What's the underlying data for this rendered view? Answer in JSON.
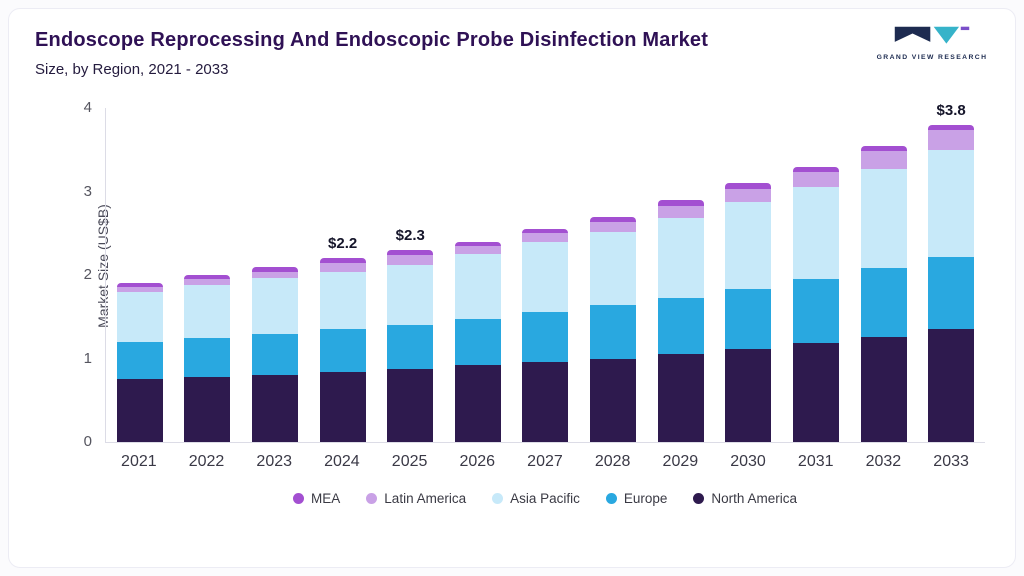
{
  "header": {
    "title": "Endoscope Reprocessing And Endoscopic Probe Disinfection Market",
    "subtitle": "Size, by Region, 2021 - 2033",
    "logo_text": "GRAND VIEW RESEARCH"
  },
  "chart_data": {
    "type": "bar",
    "stacked": true,
    "title": "Endoscope Reprocessing And Endoscopic Probe Disinfection Market Size, by Region, 2021 - 2033",
    "ylabel": "Market Size (US$B)",
    "ylim": [
      0,
      4
    ],
    "yticks": [
      0,
      1,
      2,
      3,
      4
    ],
    "grid": false,
    "legend_position": "bottom",
    "categories": [
      "2021",
      "2022",
      "2023",
      "2024",
      "2025",
      "2026",
      "2027",
      "2028",
      "2029",
      "2030",
      "2031",
      "2032",
      "2033"
    ],
    "series": [
      {
        "name": "North America",
        "color": "#2e1a4e",
        "values": [
          0.75,
          0.78,
          0.8,
          0.84,
          0.87,
          0.92,
          0.96,
          1.0,
          1.05,
          1.11,
          1.18,
          1.26,
          1.35
        ]
      },
      {
        "name": "Europe",
        "color": "#29a8e0",
        "values": [
          0.45,
          0.46,
          0.49,
          0.51,
          0.53,
          0.55,
          0.6,
          0.64,
          0.68,
          0.72,
          0.77,
          0.82,
          0.87
        ]
      },
      {
        "name": "Asia Pacific",
        "color": "#c7e9f9",
        "values": [
          0.6,
          0.64,
          0.67,
          0.69,
          0.72,
          0.78,
          0.84,
          0.88,
          0.95,
          1.05,
          1.1,
          1.19,
          1.28
        ]
      },
      {
        "name": "Latin America",
        "color": "#c9a1e6",
        "values": [
          0.06,
          0.07,
          0.08,
          0.1,
          0.12,
          0.1,
          0.1,
          0.12,
          0.15,
          0.15,
          0.18,
          0.21,
          0.24
        ]
      },
      {
        "name": "MEA",
        "color": "#a34fd1",
        "values": [
          0.04,
          0.05,
          0.06,
          0.06,
          0.06,
          0.05,
          0.05,
          0.06,
          0.07,
          0.07,
          0.07,
          0.07,
          0.06
        ]
      }
    ],
    "bar_labels": [
      {
        "category": "2024",
        "text": "$2.2"
      },
      {
        "category": "2025",
        "text": "$2.3"
      },
      {
        "category": "2033",
        "text": "$3.8"
      }
    ],
    "legend": [
      "MEA",
      "Latin America",
      "Asia Pacific",
      "Europe",
      "North America"
    ]
  }
}
